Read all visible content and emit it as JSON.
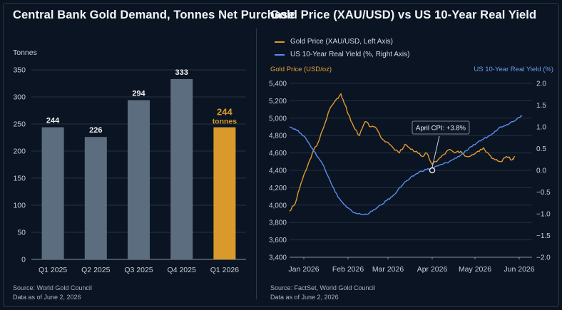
{
  "left": {
    "title": "Central Bank Gold Demand, Tonnes Net Purchase",
    "unit_label": "Tonnes",
    "source": "Source: World Gold Council",
    "data_as_of": "Data as of June 2, 2026",
    "highlight_value": "244",
    "highlight_unit": "tonnes",
    "colors": {
      "bar": "#5d6d80",
      "highlight": "#d99a2b",
      "grid": "#253244",
      "axis_text": "#c6cfd9"
    }
  },
  "right": {
    "title": "Gold Price (XAU/USD) vs US 10-Year Real Yield",
    "legend_gold": "Gold Price (XAU/USD, Left Axis)",
    "legend_yield": "US 10-Year Real Yield (%, Right Axis)",
    "left_axis_name": "Gold Price (USD/oz)",
    "right_axis_name": "US 10-Year Real Yield (%)",
    "annotation": "April CPI: +3.8%",
    "source": "Source: FactSet, World Gold Council",
    "data_as_of": "Data as of June 2, 2026",
    "colors": {
      "gold": "#e09a2e",
      "yield": "#5b8def",
      "grid": "#233042"
    }
  },
  "chart_data": [
    {
      "type": "bar",
      "title": "Central Bank Gold Demand, Tonnes Net Purchase",
      "ylabel": "Tonnes",
      "categories": [
        "Q1 2025",
        "Q2 2025",
        "Q3 2025",
        "Q4 2025",
        "Q1 2026"
      ],
      "values": [
        244,
        226,
        294,
        333,
        244
      ],
      "data_labels": [
        "244",
        "226",
        "294",
        "333",
        "244"
      ],
      "highlight_index": 4,
      "ylim": [
        0,
        350
      ],
      "yticks": [
        0,
        50,
        100,
        150,
        200,
        250,
        300,
        350
      ],
      "grid": true
    },
    {
      "type": "line",
      "title": "Gold Price (XAU/USD) vs US 10-Year Real Yield",
      "x_ticks": [
        "Jan 2026",
        "Feb 2026",
        "Mar 2026",
        "Apr 2026",
        "May 2026",
        "Jun 2026"
      ],
      "x_tick_positions": [
        0,
        31,
        59,
        90,
        120,
        151
      ],
      "xlim": [
        -10,
        160
      ],
      "ylim_left": [
        3400,
        5400
      ],
      "yticks_left": [
        3400,
        3600,
        3800,
        4000,
        4200,
        4400,
        4600,
        4800,
        5000,
        5200,
        5400
      ],
      "ytick_labels_left": [
        "3,400",
        "3,600",
        "3,800",
        "4,000",
        "4,200",
        "4,400",
        "4,600",
        "4,800",
        "5,000",
        "5,200",
        "5,400"
      ],
      "ylim_right": [
        -2.0,
        2.0
      ],
      "yticks_right": [
        -2.0,
        -1.5,
        -1.0,
        -0.5,
        0.0,
        0.5,
        1.0,
        1.5,
        2.0
      ],
      "ytick_labels_right": [
        "−2.0",
        "−1.5",
        "−1.0",
        "−0.5",
        "0.0",
        "0.5",
        "1.0",
        "1.5",
        "2.0"
      ],
      "legend_position": "top-left",
      "grid": true,
      "series": [
        {
          "name": "Gold Price (XAU/USD, Left Axis)",
          "axis": "left",
          "x": [
            -10,
            -6,
            -2,
            2,
            6,
            10,
            14,
            18,
            22,
            26,
            29,
            31,
            35,
            39,
            43,
            47,
            51,
            55,
            59,
            63,
            67,
            71,
            75,
            79,
            83,
            86,
            90,
            94,
            98,
            102,
            106,
            110,
            114,
            118,
            122,
            126,
            130,
            134,
            138,
            142,
            146,
            148
          ],
          "values": [
            3930,
            4020,
            4250,
            4420,
            4600,
            4720,
            4900,
            5100,
            5200,
            5280,
            5150,
            5050,
            4900,
            4800,
            4960,
            4900,
            4880,
            4760,
            4720,
            4650,
            4600,
            4700,
            4640,
            4620,
            4560,
            4600,
            4470,
            4520,
            4580,
            4640,
            4600,
            4620,
            4560,
            4580,
            4620,
            4660,
            4580,
            4520,
            4500,
            4560,
            4520,
            4560
          ]
        },
        {
          "name": "US 10-Year Real Yield (%, Right Axis)",
          "axis": "right",
          "x": [
            -10,
            -6,
            -2,
            2,
            6,
            10,
            14,
            18,
            22,
            26,
            30,
            34,
            38,
            42,
            46,
            50,
            54,
            58,
            62,
            66,
            70,
            74,
            78,
            82,
            86,
            90,
            94,
            98,
            102,
            106,
            110,
            114,
            118,
            122,
            126,
            130,
            134,
            138,
            142,
            146,
            150,
            153
          ],
          "values": [
            1.0,
            0.95,
            0.85,
            0.7,
            0.5,
            0.3,
            0.1,
            -0.2,
            -0.5,
            -0.7,
            -0.85,
            -0.95,
            -1.0,
            -1.02,
            -0.98,
            -0.9,
            -0.8,
            -0.7,
            -0.6,
            -0.45,
            -0.3,
            -0.2,
            -0.1,
            -0.02,
            0.02,
            0.05,
            0.1,
            0.15,
            0.2,
            0.28,
            0.35,
            0.45,
            0.55,
            0.65,
            0.72,
            0.8,
            0.9,
            1.0,
            1.05,
            1.12,
            1.2,
            1.25
          ]
        }
      ],
      "annotation": {
        "text": "April CPI: +3.8%",
        "x": 90,
        "y_left": 4400
      }
    }
  ]
}
